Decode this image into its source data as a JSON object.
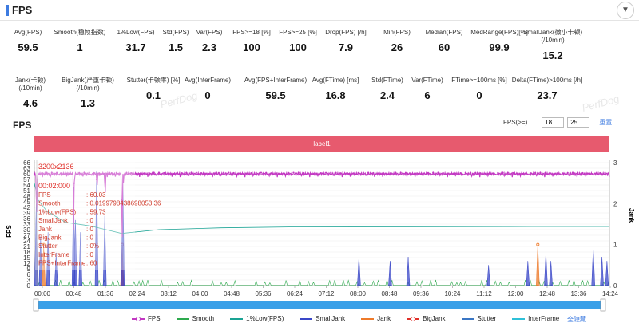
{
  "header": {
    "title": "FPS",
    "collapse_icon": "chevron-down-icon"
  },
  "stats_row1": [
    {
      "label": "Avg(FPS)",
      "value": "59.5"
    },
    {
      "label": "Smooth(稳帧指数)",
      "value": "1"
    },
    {
      "label": "1%Low(FPS)",
      "value": "31.7"
    },
    {
      "label": "Std(FPS)",
      "value": "1.5"
    },
    {
      "label": "Var(FPS)",
      "value": "2.3"
    },
    {
      "label": "FPS>=18 [%]",
      "value": "100"
    },
    {
      "label": "FPS>=25 [%]",
      "value": "100"
    },
    {
      "label": "Drop(FPS) [/h]",
      "value": "7.9"
    },
    {
      "label": "Min(FPS)",
      "value": "26"
    },
    {
      "label": "Median(FPS)",
      "value": "60"
    },
    {
      "label": "MedRange(FPS)[%]",
      "value": "99.9"
    },
    {
      "label": "SmallJank(微小卡顿)\n(/10min)",
      "value": "15.2"
    }
  ],
  "stats_row2": [
    {
      "label": "Jank(卡顿)\n(/10min)",
      "value": "4.6"
    },
    {
      "label": "BigJank(严重卡顿)\n(/10min)",
      "value": "1.3"
    },
    {
      "label": "Stutter(卡顿率) [%]",
      "value": "0.1"
    },
    {
      "label": "Avg(InterFrame)",
      "value": "0"
    },
    {
      "label": "Avg(FPS+InterFrame)",
      "value": "59.5"
    },
    {
      "label": "Avg(FTime) [ms]",
      "value": "16.8"
    },
    {
      "label": "Std(FTime)",
      "value": "2.4"
    },
    {
      "label": "Var(FTime)",
      "value": "6"
    },
    {
      "label": "FTime>=100ms [%]",
      "value": "0"
    },
    {
      "label": "Delta(FTime)>100ms [/h]",
      "value": "23.7"
    }
  ],
  "watermark": "PerfDog",
  "chart_section": {
    "title": "FPS",
    "fps_threshold_label": "FPS(>=)",
    "fps_threshold_1": "18",
    "fps_threshold_2": "25",
    "reset_label": "重置",
    "band_label": "label1",
    "left_axis_label": "FPS",
    "right_axis_label": "Jank",
    "hide_all_label": "全隐藏"
  },
  "tooltip": {
    "resolution": "3200x2136",
    "time": "00:02:000",
    "rows": [
      {
        "k": "FPS",
        "v": ": 60.03"
      },
      {
        "k": "Smooth",
        "v": ": 0.0199798438698053 36"
      },
      {
        "k": "1%Low(FPS)",
        "v": ": 59.73"
      },
      {
        "k": "SmallJank",
        "v": ": 0"
      },
      {
        "k": "Jank",
        "v": ": 0"
      },
      {
        "k": "BigJank",
        "v": ": 0"
      },
      {
        "k": "Stutter",
        "v": ": 0%"
      },
      {
        "k": "InterFrame",
        "v": ": 0"
      },
      {
        "k": "FPS+InterFrame",
        "v": ": 60"
      }
    ]
  },
  "chart_data": {
    "type": "line",
    "x_ticks": [
      "00:00",
      "00:48",
      "01:36",
      "02:24",
      "03:12",
      "04:00",
      "04:48",
      "05:36",
      "06:24",
      "07:12",
      "08:00",
      "08:48",
      "09:36",
      "10:24",
      "11:12",
      "12:00",
      "12:48",
      "13:36",
      "14:24"
    ],
    "y_left_ticks": [
      0,
      3,
      6,
      9,
      12,
      15,
      18,
      21,
      24,
      27,
      30,
      33,
      36,
      39,
      42,
      45,
      48,
      51,
      54,
      57,
      60,
      63,
      66
    ],
    "y_left_labels": [
      "0",
      "3",
      "6",
      "9",
      "12",
      "15",
      "18",
      "21",
      "24",
      "27",
      "30",
      "33",
      "36",
      "39",
      "42",
      "45",
      "48",
      "51",
      "54",
      "57",
      "60",
      "63",
      "66"
    ],
    "y_right_ticks": [
      0,
      1,
      2,
      3
    ],
    "y_right_labels": [
      "0",
      "1",
      "2",
      "3"
    ],
    "ylim_left": [
      0,
      66
    ],
    "ylim_right": [
      0,
      3
    ],
    "x_range_sec": [
      0,
      923
    ],
    "series": [
      {
        "name": "FPS",
        "color": "#c238c2"
      },
      {
        "name": "Smooth",
        "color": "#2eaa4e"
      },
      {
        "name": "1%Low(FPS)",
        "color": "#1aa394"
      },
      {
        "name": "SmallJank",
        "color": "#3a47c8"
      },
      {
        "name": "Jank",
        "color": "#ee7a2a"
      },
      {
        "name": "BigJank",
        "color": "#e0302a"
      },
      {
        "name": "Stutter",
        "color": "#3a76c4"
      },
      {
        "name": "InterFrame",
        "color": "#2fc0d8"
      }
    ],
    "fps_typical": 60,
    "fps_dips": [
      [
        3,
        48
      ],
      [
        4,
        40
      ],
      [
        5,
        56
      ],
      [
        63,
        30
      ],
      [
        64,
        55
      ],
      [
        100,
        57
      ],
      [
        101,
        54
      ],
      [
        113,
        55
      ],
      [
        114,
        50
      ],
      [
        140,
        46
      ],
      [
        141,
        26
      ],
      [
        143,
        55
      ]
    ],
    "low1_points": [
      [
        0,
        55
      ],
      [
        6,
        46
      ],
      [
        20,
        40
      ],
      [
        50,
        34
      ],
      [
        90,
        32
      ],
      [
        140,
        28
      ],
      [
        200,
        30
      ],
      [
        300,
        31
      ],
      [
        420,
        31.5
      ],
      [
        600,
        31.6
      ],
      [
        800,
        31.7
      ],
      [
        923,
        31.7
      ]
    ],
    "jank_spikes_right_axis": [
      {
        "t": 3,
        "h": 2.0,
        "s": "SmallJank"
      },
      {
        "t": 10,
        "h": 1.2,
        "s": "SmallJank"
      },
      {
        "t": 15,
        "h": 1.0,
        "s": "Jank"
      },
      {
        "t": 22,
        "h": 1.3,
        "s": "SmallJank"
      },
      {
        "t": 35,
        "h": 0.8,
        "s": "SmallJank"
      },
      {
        "t": 63,
        "h": 2.4,
        "s": "SmallJank"
      },
      {
        "t": 66,
        "h": 1.6,
        "s": "SmallJank"
      },
      {
        "t": 74,
        "h": 1.3,
        "s": "SmallJank"
      },
      {
        "t": 100,
        "h": 2.8,
        "s": "SmallJank"
      },
      {
        "t": 113,
        "h": 1.7,
        "s": "SmallJank"
      },
      {
        "t": 141,
        "h": 1.0,
        "s": "BigJank"
      },
      {
        "t": 142,
        "h": 2.6,
        "s": "SmallJank"
      },
      {
        "t": 521,
        "h": 0.7,
        "s": "SmallJank"
      },
      {
        "t": 571,
        "h": 0.6,
        "s": "SmallJank"
      },
      {
        "t": 600,
        "h": 0.7,
        "s": "SmallJank"
      },
      {
        "t": 729,
        "h": 0.5,
        "s": "SmallJank"
      },
      {
        "t": 792,
        "h": 0.6,
        "s": "SmallJank"
      },
      {
        "t": 808,
        "h": 1.0,
        "s": "Jank"
      },
      {
        "t": 821,
        "h": 0.8,
        "s": "SmallJank"
      },
      {
        "t": 829,
        "h": 0.6,
        "s": "SmallJank"
      },
      {
        "t": 897,
        "h": 0.9,
        "s": "SmallJank"
      },
      {
        "t": 911,
        "h": 0.7,
        "s": "SmallJank"
      },
      {
        "t": 919,
        "h": 0.6,
        "s": "SmallJank"
      }
    ]
  }
}
